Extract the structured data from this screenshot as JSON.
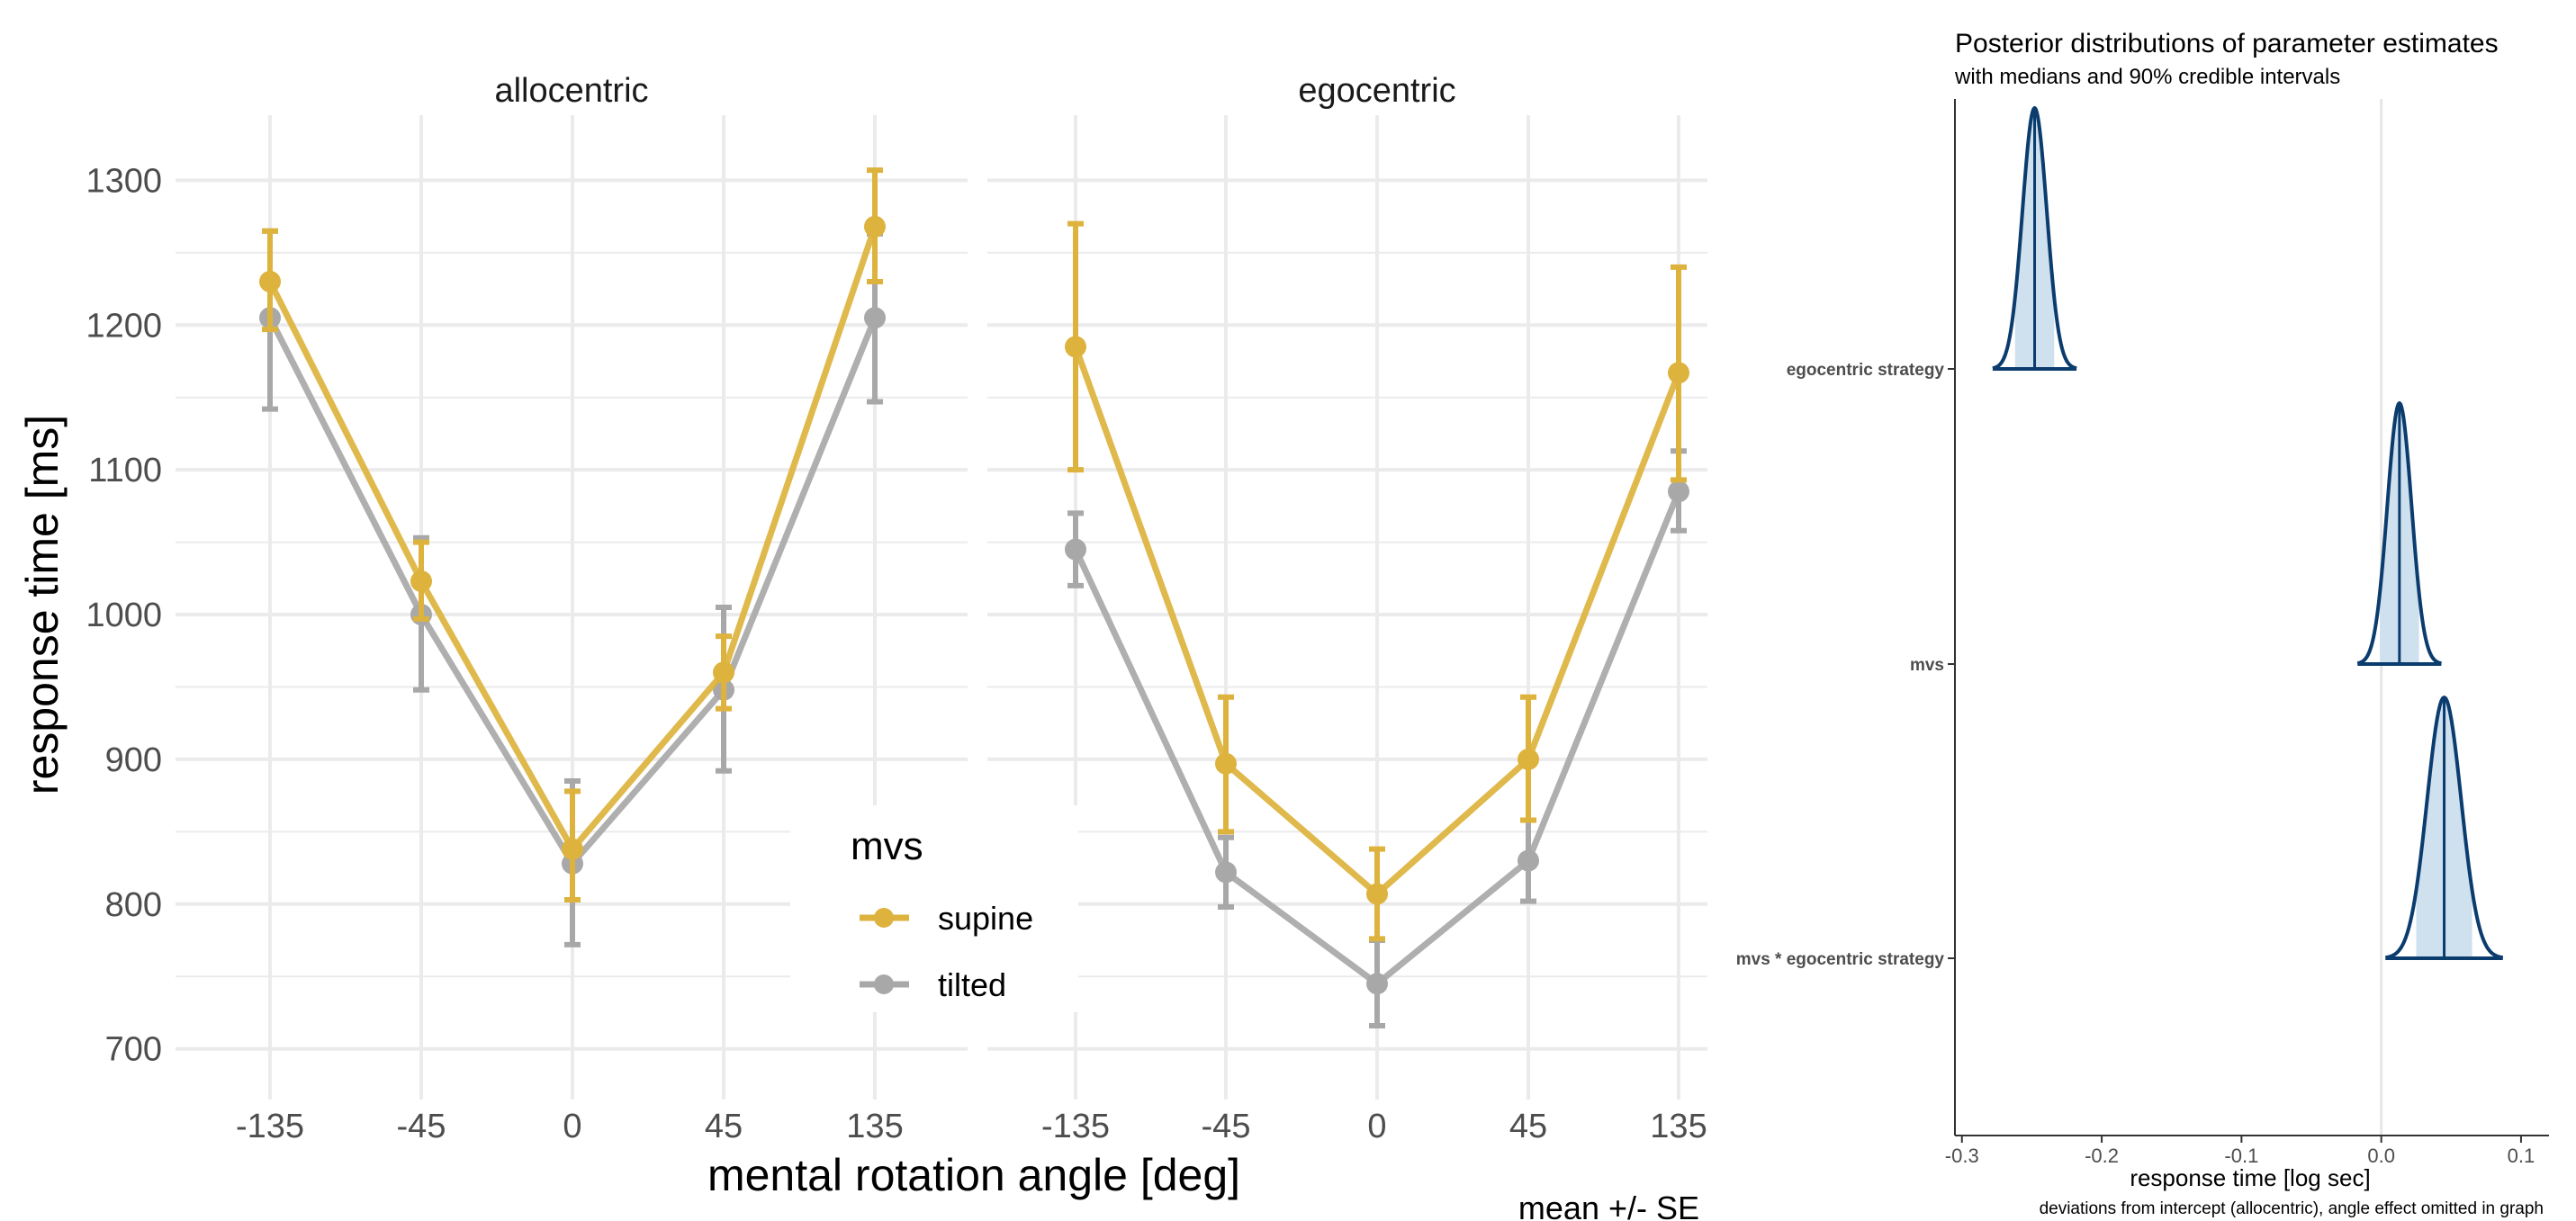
{
  "chart_data": [
    {
      "type": "line",
      "facets": [
        "allocentric",
        "egocentric"
      ],
      "categories": [
        "-135",
        "-45",
        "0",
        "45",
        "135"
      ],
      "xlabel": "mental rotation angle [deg]",
      "ylabel": "response time [ms]",
      "ylim": [
        665,
        1345
      ],
      "yticks": [
        700,
        800,
        900,
        1000,
        1100,
        1200,
        1300
      ],
      "legend": {
        "title": "mvs",
        "position": "inside-bottom-center"
      },
      "caption": "mean +/- SE",
      "grid": true,
      "series": [
        {
          "name": "supine",
          "color": "#DDB33D",
          "allocentric": {
            "mean": [
              1230,
              1023,
              838,
              960,
              1268
            ],
            "lo": [
              1197,
              997,
              803,
              935,
              1230
            ],
            "hi": [
              1265,
              1050,
              878,
              985,
              1307
            ]
          },
          "egocentric": {
            "mean": [
              1185,
              897,
              807,
              900,
              1167
            ],
            "lo": [
              1100,
              850,
              776,
              858,
              1093
            ],
            "hi": [
              1270,
              943,
              838,
              943,
              1240
            ]
          }
        },
        {
          "name": "tilted",
          "color": "#A8A8A8",
          "allocentric": {
            "mean": [
              1205,
              1000,
              828,
              948,
              1205
            ],
            "lo": [
              1142,
              948,
              772,
              892,
              1147
            ],
            "hi": [
              1265,
              1053,
              885,
              1005,
              1263
            ]
          },
          "egocentric": {
            "mean": [
              1045,
              822,
              745,
              830,
              1085
            ],
            "lo": [
              1020,
              798,
              716,
              802,
              1058
            ],
            "hi": [
              1070,
              846,
              775,
              858,
              1113
            ]
          }
        }
      ]
    },
    {
      "type": "density",
      "title": "Posterior distributions of parameter estimates",
      "subtitle": "with medians and 90% credible intervals",
      "xlabel": "response time [log sec]",
      "caption": "deviations from intercept (allocentric), angle effect omitted in graph",
      "xlim": [
        -0.305,
        0.12
      ],
      "xticks": [
        -0.3,
        -0.2,
        -0.1,
        0.0,
        0.1
      ],
      "xtick_labels": [
        "-0.3",
        "-0.2",
        "-0.1",
        "0.0",
        "0.1"
      ],
      "fill_color": "#CFE0EE",
      "line_color": "#0B3C6E",
      "params": [
        {
          "name": "egocentric strategy",
          "median": -0.248,
          "sd": 0.0087,
          "ci": [
            -0.262,
            -0.234
          ],
          "range": [
            -0.278,
            -0.218
          ]
        },
        {
          "name": "mvs",
          "median": 0.013,
          "sd": 0.0087,
          "ci": [
            -0.001,
            0.027
          ],
          "range": [
            -0.017,
            0.043
          ]
        },
        {
          "name": "mvs * egocentric strategy",
          "median": 0.045,
          "sd": 0.0122,
          "ci": [
            0.025,
            0.065
          ],
          "range": [
            0.003,
            0.087
          ]
        }
      ]
    }
  ]
}
